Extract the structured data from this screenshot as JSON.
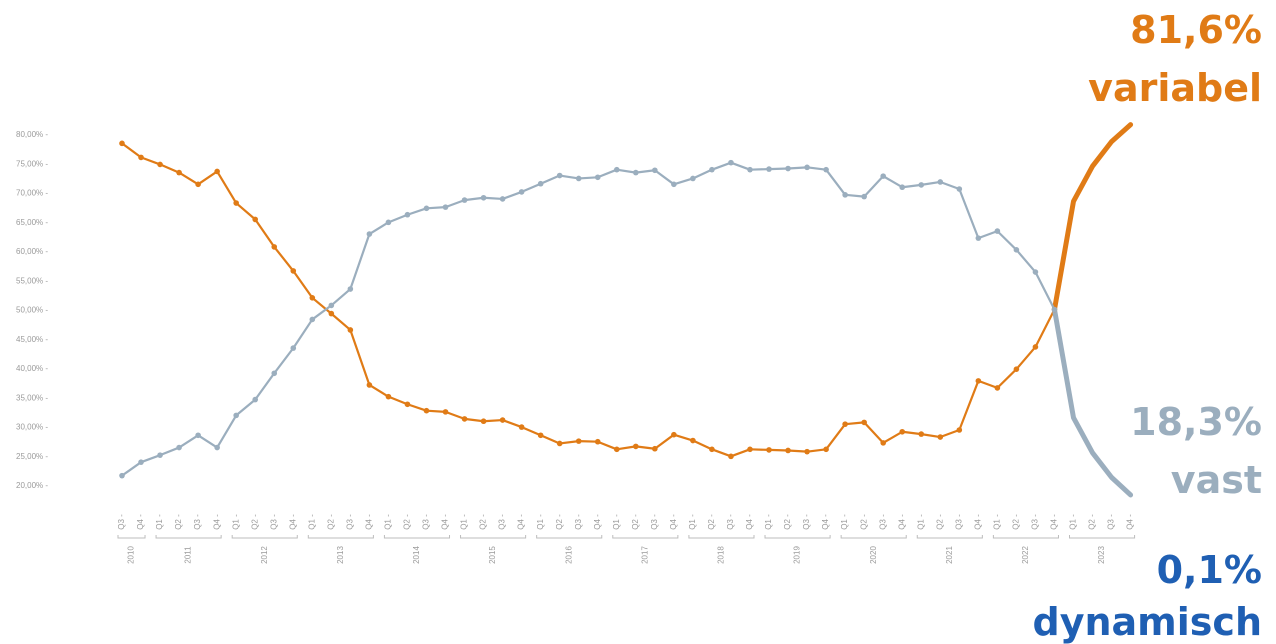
{
  "colors": {
    "variabel": "#E07B16",
    "vast": "#9BAEBE",
    "dynamisch": "#1F5FB3",
    "tick": "#9a9a9a"
  },
  "annotations": {
    "variabel_pct": "81,6%",
    "variabel_label": "variabel",
    "vast_pct": "18,3%",
    "vast_label": "vast",
    "dynamisch_pct": "0,1%",
    "dynamisch_label": "dynamisch"
  },
  "chart_data": {
    "type": "line",
    "title": "",
    "xlabel": "",
    "ylabel": "",
    "ylim": [
      20,
      80
    ],
    "yticks": [
      "80,00%",
      "75,00%",
      "70,00%",
      "65,00%",
      "60,00%",
      "55,00%",
      "50,00%",
      "45,00%",
      "40,00%",
      "35,00%",
      "30,00%",
      "25,00%",
      "20,00%"
    ],
    "ytick_values": [
      80,
      75,
      70,
      65,
      60,
      55,
      50,
      45,
      40,
      35,
      30,
      25,
      20
    ],
    "years": [
      {
        "label": "2010",
        "quarters": [
          "Q3",
          "Q4"
        ]
      },
      {
        "label": "2011",
        "quarters": [
          "Q1",
          "Q2",
          "Q3",
          "Q4"
        ]
      },
      {
        "label": "2012",
        "quarters": [
          "Q1",
          "Q2",
          "Q3",
          "Q4"
        ]
      },
      {
        "label": "2013",
        "quarters": [
          "Q1",
          "Q2",
          "Q3",
          "Q4"
        ]
      },
      {
        "label": "2014",
        "quarters": [
          "Q1",
          "Q2",
          "Q3",
          "Q4"
        ]
      },
      {
        "label": "2015",
        "quarters": [
          "Q1",
          "Q2",
          "Q3",
          "Q4"
        ]
      },
      {
        "label": "2016",
        "quarters": [
          "Q1",
          "Q2",
          "Q3",
          "Q4"
        ]
      },
      {
        "label": "2017",
        "quarters": [
          "Q1",
          "Q2",
          "Q3",
          "Q4"
        ]
      },
      {
        "label": "2018",
        "quarters": [
          "Q1",
          "Q2",
          "Q3",
          "Q4"
        ]
      },
      {
        "label": "2019",
        "quarters": [
          "Q1",
          "Q2",
          "Q3",
          "Q4"
        ]
      },
      {
        "label": "2020",
        "quarters": [
          "Q1",
          "Q2",
          "Q3",
          "Q4"
        ]
      },
      {
        "label": "2021",
        "quarters": [
          "Q1",
          "Q2",
          "Q3",
          "Q4"
        ]
      },
      {
        "label": "2022",
        "quarters": [
          "Q1",
          "Q2",
          "Q3",
          "Q4"
        ]
      },
      {
        "label": "2023",
        "quarters": [
          "Q1",
          "Q2",
          "Q3",
          "Q4"
        ]
      }
    ],
    "split_index": 50,
    "series": [
      {
        "key": "variabel",
        "values": [
          78.4,
          76.0,
          74.8,
          73.4,
          71.4,
          73.6,
          68.2,
          65.4,
          60.7,
          56.6,
          52.0,
          49.3,
          46.5,
          37.1,
          35.1,
          33.8,
          32.7,
          32.5,
          31.3,
          30.9,
          31.1,
          29.9,
          28.5,
          27.1,
          27.5,
          27.4,
          26.1,
          26.6,
          26.2,
          28.6,
          27.6,
          26.1,
          24.9,
          26.1,
          26.0,
          25.9,
          25.7,
          26.1,
          30.4,
          30.7,
          27.2,
          29.1,
          28.7,
          28.2,
          29.4,
          37.8,
          36.6,
          39.8,
          43.6,
          50.0,
          68.5,
          74.5,
          78.7,
          81.6
        ]
      },
      {
        "key": "vast",
        "values": [
          21.6,
          23.9,
          25.1,
          26.4,
          28.5,
          26.4,
          31.9,
          34.6,
          39.1,
          43.4,
          48.3,
          50.7,
          53.5,
          62.9,
          64.9,
          66.2,
          67.3,
          67.5,
          68.7,
          69.1,
          68.9,
          70.1,
          71.5,
          72.9,
          72.4,
          72.6,
          73.9,
          73.4,
          73.8,
          71.4,
          72.4,
          73.9,
          75.1,
          73.9,
          74.0,
          74.1,
          74.3,
          73.9,
          69.6,
          69.3,
          72.8,
          70.9,
          71.3,
          71.8,
          70.6,
          62.2,
          63.4,
          60.2,
          56.4,
          50.0,
          31.5,
          25.5,
          21.3,
          18.3
        ]
      }
    ]
  }
}
